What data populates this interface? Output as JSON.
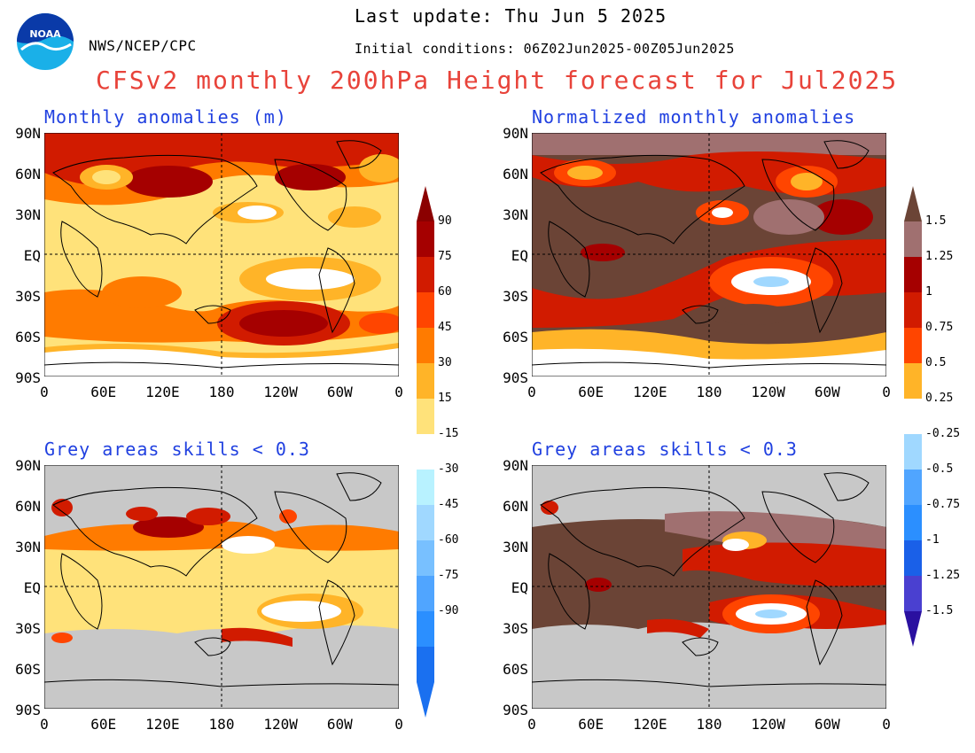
{
  "header": {
    "last_update": "Last update: Thu Jun 5 2025",
    "source": "NWS/NCEP/CPC",
    "initial_conditions": "Initial conditions: 06Z02Jun2025-00Z05Jun2025",
    "title": "CFSv2 monthly 200hPa Height forecast for Jul2025",
    "logo_text": "NOAA"
  },
  "panels": [
    {
      "title": "Monthly anomalies (m)"
    },
    {
      "title": "Normalized monthly anomalies"
    },
    {
      "title": "Grey areas skills < 0.3"
    },
    {
      "title": "Grey areas skills < 0.3"
    }
  ],
  "axes": {
    "lat_labels": [
      "90N",
      "60N",
      "30N",
      "EQ",
      "30S",
      "60S",
      "90S"
    ],
    "lon_labels": [
      "0",
      "60E",
      "120E",
      "180",
      "120W",
      "60W",
      "0"
    ]
  },
  "colorbar_left": {
    "labels": [
      "90",
      "75",
      "60",
      "45",
      "30",
      "15",
      "-15",
      "-30",
      "-45",
      "-60",
      "-75",
      "-90"
    ],
    "warm_colors": [
      "#a50000",
      "#d11b00",
      "#ff4500",
      "#ff7b00",
      "#ffb428",
      "#ffe27a"
    ],
    "cool_colors": [
      "#b8f2ff",
      "#a0d8ff",
      "#78c0ff",
      "#50a5ff",
      "#2b8fff",
      "#1a70f0"
    ],
    "top_arrow_color": "#8b0000",
    "bottom_arrow_color": "#1a70f0"
  },
  "colorbar_right": {
    "labels": [
      "1.5",
      "1.25",
      "1",
      "0.75",
      "0.5",
      "0.25",
      "-0.25",
      "-0.5",
      "-0.75",
      "-1",
      "-1.25",
      "-1.5"
    ],
    "warm_colors": [
      "#a07070",
      "#a50000",
      "#d11b00",
      "#ff4500",
      "#ffb428"
    ],
    "cool_colors": [
      "#a0d8ff",
      "#50a5ff",
      "#2b8fff",
      "#1a60e8",
      "#4a40d0"
    ],
    "top_arrow_color": "#6b4436",
    "bottom_arrow_color": "#2a10a0"
  },
  "colors": {
    "grey_mask": "#c8c8c8",
    "brown": "#6b4436",
    "light_brown": "#a07070",
    "title_red": "#e8433a",
    "panel_title_blue": "#2040e0"
  }
}
